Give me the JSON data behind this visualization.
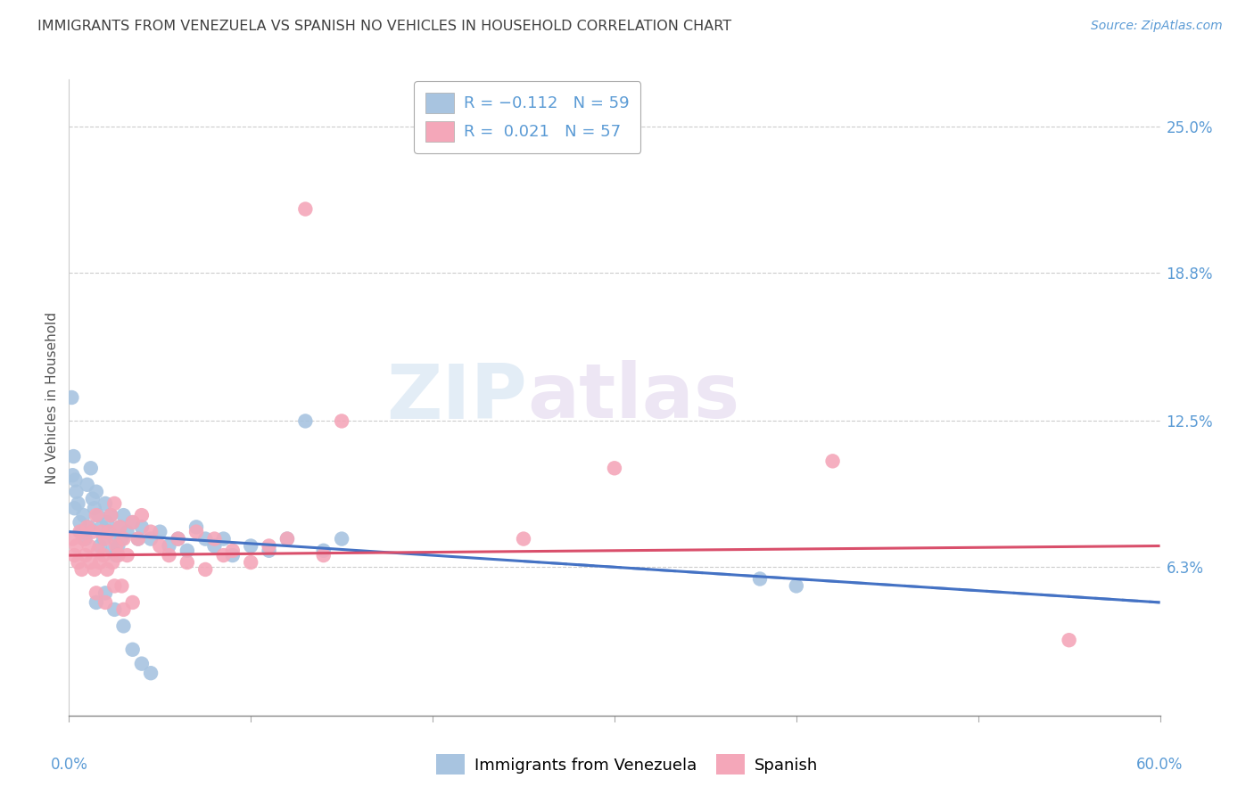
{
  "title": "IMMIGRANTS FROM VENEZUELA VS SPANISH NO VEHICLES IN HOUSEHOLD CORRELATION CHART",
  "source": "Source: ZipAtlas.com",
  "ylabel": "No Vehicles in Household",
  "ytick_values": [
    6.3,
    12.5,
    18.8,
    25.0
  ],
  "xlim": [
    0.0,
    60.0
  ],
  "ylim": [
    0.0,
    27.0
  ],
  "blue_color": "#a8c4e0",
  "pink_color": "#f4a7b9",
  "blue_line_color": "#4472c4",
  "pink_line_color": "#d94f6b",
  "title_color": "#404040",
  "axis_label_color": "#5b9bd5",
  "watermark_zip": "ZIP",
  "watermark_atlas": "atlas",
  "blue_scatter": [
    [
      0.2,
      10.2
    ],
    [
      0.3,
      8.8
    ],
    [
      0.4,
      9.5
    ],
    [
      0.5,
      9.0
    ],
    [
      0.6,
      8.2
    ],
    [
      0.7,
      7.8
    ],
    [
      0.8,
      8.5
    ],
    [
      0.9,
      7.5
    ],
    [
      1.0,
      9.8
    ],
    [
      1.1,
      8.0
    ],
    [
      1.2,
      10.5
    ],
    [
      1.3,
      9.2
    ],
    [
      1.4,
      8.8
    ],
    [
      1.5,
      9.5
    ],
    [
      1.6,
      8.5
    ],
    [
      1.7,
      7.2
    ],
    [
      1.8,
      8.0
    ],
    [
      1.9,
      7.5
    ],
    [
      2.0,
      9.0
    ],
    [
      2.1,
      8.2
    ],
    [
      2.2,
      7.8
    ],
    [
      2.3,
      8.5
    ],
    [
      2.4,
      7.0
    ],
    [
      2.5,
      7.5
    ],
    [
      2.6,
      6.8
    ],
    [
      2.7,
      7.2
    ],
    [
      2.8,
      8.0
    ],
    [
      2.9,
      7.5
    ],
    [
      3.0,
      8.5
    ],
    [
      3.2,
      7.8
    ],
    [
      3.5,
      8.2
    ],
    [
      3.8,
      7.5
    ],
    [
      4.0,
      8.0
    ],
    [
      4.5,
      7.5
    ],
    [
      5.0,
      7.8
    ],
    [
      5.5,
      7.2
    ],
    [
      6.0,
      7.5
    ],
    [
      6.5,
      7.0
    ],
    [
      7.0,
      8.0
    ],
    [
      7.5,
      7.5
    ],
    [
      8.0,
      7.2
    ],
    [
      8.5,
      7.5
    ],
    [
      9.0,
      6.8
    ],
    [
      10.0,
      7.2
    ],
    [
      11.0,
      7.0
    ],
    [
      12.0,
      7.5
    ],
    [
      13.0,
      12.5
    ],
    [
      14.0,
      7.0
    ],
    [
      15.0,
      7.5
    ],
    [
      0.15,
      13.5
    ],
    [
      0.25,
      11.0
    ],
    [
      0.35,
      10.0
    ],
    [
      1.5,
      4.8
    ],
    [
      2.0,
      5.2
    ],
    [
      2.5,
      4.5
    ],
    [
      3.0,
      3.8
    ],
    [
      3.5,
      2.8
    ],
    [
      4.0,
      2.2
    ],
    [
      4.5,
      1.8
    ],
    [
      38.0,
      5.8
    ],
    [
      40.0,
      5.5
    ]
  ],
  "pink_scatter": [
    [
      0.2,
      7.5
    ],
    [
      0.3,
      6.8
    ],
    [
      0.4,
      7.2
    ],
    [
      0.5,
      6.5
    ],
    [
      0.6,
      7.8
    ],
    [
      0.7,
      6.2
    ],
    [
      0.8,
      7.5
    ],
    [
      0.9,
      6.8
    ],
    [
      1.0,
      8.0
    ],
    [
      1.1,
      7.2
    ],
    [
      1.2,
      6.5
    ],
    [
      1.3,
      7.8
    ],
    [
      1.4,
      6.2
    ],
    [
      1.5,
      8.5
    ],
    [
      1.6,
      7.0
    ],
    [
      1.7,
      6.5
    ],
    [
      1.8,
      7.8
    ],
    [
      1.9,
      6.8
    ],
    [
      2.0,
      7.5
    ],
    [
      2.1,
      6.2
    ],
    [
      2.2,
      7.8
    ],
    [
      2.3,
      8.5
    ],
    [
      2.4,
      6.5
    ],
    [
      2.5,
      9.0
    ],
    [
      2.6,
      7.2
    ],
    [
      2.7,
      6.8
    ],
    [
      2.8,
      8.0
    ],
    [
      2.9,
      5.5
    ],
    [
      3.0,
      7.5
    ],
    [
      3.2,
      6.8
    ],
    [
      3.5,
      8.2
    ],
    [
      3.8,
      7.5
    ],
    [
      4.0,
      8.5
    ],
    [
      4.5,
      7.8
    ],
    [
      5.0,
      7.2
    ],
    [
      5.5,
      6.8
    ],
    [
      6.0,
      7.5
    ],
    [
      6.5,
      6.5
    ],
    [
      7.0,
      7.8
    ],
    [
      7.5,
      6.2
    ],
    [
      8.0,
      7.5
    ],
    [
      8.5,
      6.8
    ],
    [
      9.0,
      7.0
    ],
    [
      10.0,
      6.5
    ],
    [
      11.0,
      7.2
    ],
    [
      12.0,
      7.5
    ],
    [
      13.0,
      21.5
    ],
    [
      14.0,
      6.8
    ],
    [
      15.0,
      12.5
    ],
    [
      1.5,
      5.2
    ],
    [
      2.0,
      4.8
    ],
    [
      2.5,
      5.5
    ],
    [
      3.0,
      4.5
    ],
    [
      3.5,
      4.8
    ],
    [
      25.0,
      7.5
    ],
    [
      30.0,
      10.5
    ],
    [
      42.0,
      10.8
    ],
    [
      55.0,
      3.2
    ]
  ],
  "blue_line": {
    "x0": 0.0,
    "y0": 7.8,
    "x1": 60.0,
    "y1": 4.8
  },
  "pink_line": {
    "x0": 0.0,
    "y0": 6.8,
    "x1": 60.0,
    "y1": 7.2
  },
  "blue_dashed_start": 25.0,
  "title_fontsize": 11.5,
  "source_fontsize": 10,
  "ylabel_fontsize": 11,
  "tick_fontsize": 12
}
